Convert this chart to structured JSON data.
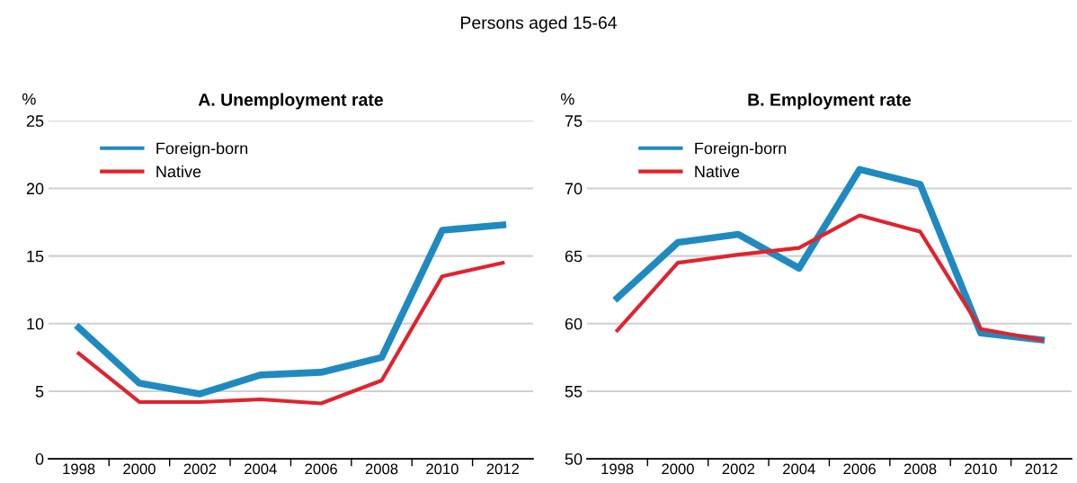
{
  "chart_data": [
    {
      "type": "line",
      "title": "A. Unemployment rate",
      "subtitle": "Persons aged 15-64",
      "ylabel": "%",
      "categories": [
        "1998",
        "2000",
        "2002",
        "2004",
        "2006",
        "2008",
        "2010",
        "2012"
      ],
      "series": [
        {
          "name": "Foreign-born",
          "color": "#1f8ac0",
          "values": [
            9.7,
            5.6,
            4.8,
            6.2,
            6.4,
            7.5,
            16.9,
            17.3
          ]
        },
        {
          "name": "Native",
          "color": "#e0232e",
          "values": [
            7.8,
            4.2,
            4.2,
            4.4,
            4.1,
            5.8,
            13.5,
            14.5
          ]
        }
      ],
      "ylim": [
        0,
        25
      ],
      "yticks": [
        0,
        5,
        10,
        15,
        20,
        25
      ],
      "grid": "y",
      "legend": "top left"
    },
    {
      "type": "line",
      "title": "B. Employment rate",
      "ylabel": "%",
      "categories": [
        "1998",
        "2000",
        "2002",
        "2004",
        "2006",
        "2008",
        "2010",
        "2012"
      ],
      "series": [
        {
          "name": "Foreign-born",
          "color": "#1f8ac0",
          "values": [
            61.9,
            66.0,
            66.6,
            64.1,
            71.4,
            70.3,
            59.3,
            58.8
          ]
        },
        {
          "name": "Native",
          "color": "#e0232e",
          "values": [
            59.5,
            64.5,
            65.1,
            65.6,
            68.0,
            66.8,
            59.6,
            58.8
          ]
        }
      ],
      "ylim": [
        50,
        75
      ],
      "yticks": [
        50,
        55,
        60,
        65,
        70,
        75
      ],
      "grid": "y",
      "legend": "top left"
    }
  ]
}
